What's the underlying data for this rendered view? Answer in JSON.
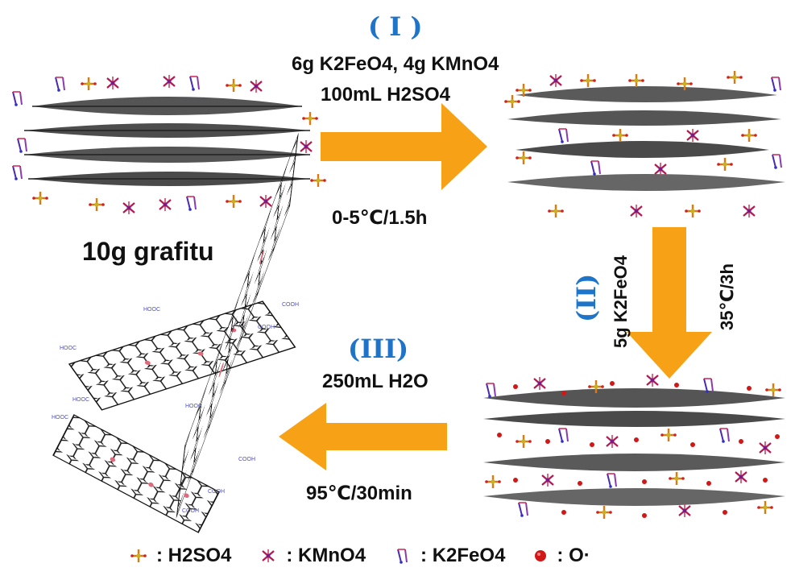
{
  "step1": {
    "numeral": "( I )",
    "reagents_line1": "6g K2FeO4, 4g KMnO4",
    "reagents_line2": "100mL H2SO4",
    "conditions": "0-5℃/1.5h"
  },
  "step2": {
    "numeral": "(II)",
    "reagent": "5g K2FeO4",
    "conditions": "35℃/3h"
  },
  "step3": {
    "numeral": "(III)",
    "reagent": "250mL H2O",
    "conditions": "95℃/30min"
  },
  "start_material": "10g grafitu",
  "edge_groups": {
    "hooc": "HOOC",
    "cooh": "COOH"
  },
  "legend": [
    {
      "icon": "h2so4-molecule-icon",
      "text": ": H2SO4"
    },
    {
      "icon": "kmno4-molecule-icon",
      "text": ": KMnO4"
    },
    {
      "icon": "k2feo4-molecule-icon",
      "text": ": K2FeO4"
    },
    {
      "icon": "oxygen-radical-icon",
      "text": ": O·"
    }
  ],
  "colors": {
    "arrow": "#f7a116",
    "step_label": "#1e74c8",
    "graphene_dark": "#4a4a4a",
    "oxygen": "#d01818",
    "h2so4": "#e07810",
    "kmno4": "#b01a50",
    "k2feo4": "#4a2ab0",
    "edge_group": "#4a4adf"
  }
}
